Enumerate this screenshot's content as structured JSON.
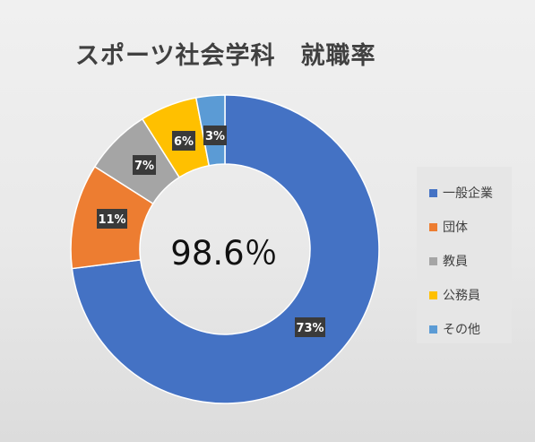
{
  "chart_data": {
    "type": "pie",
    "title": "スポーツ社会学科　就職率",
    "center_label": "98.6％",
    "legend_position": "right",
    "slices": [
      {
        "label": "一般企業",
        "value": 73,
        "display": "73%",
        "color": "#4472C4"
      },
      {
        "label": "団体",
        "value": 11,
        "display": "11%",
        "color": "#ED7D31"
      },
      {
        "label": "教員",
        "value": 7,
        "display": "7%",
        "color": "#A5A5A5"
      },
      {
        "label": "公務員",
        "value": 6,
        "display": "6%",
        "color": "#FFC000"
      },
      {
        "label": "その他",
        "value": 3,
        "display": "3%",
        "color": "#5B9BD5"
      }
    ]
  }
}
